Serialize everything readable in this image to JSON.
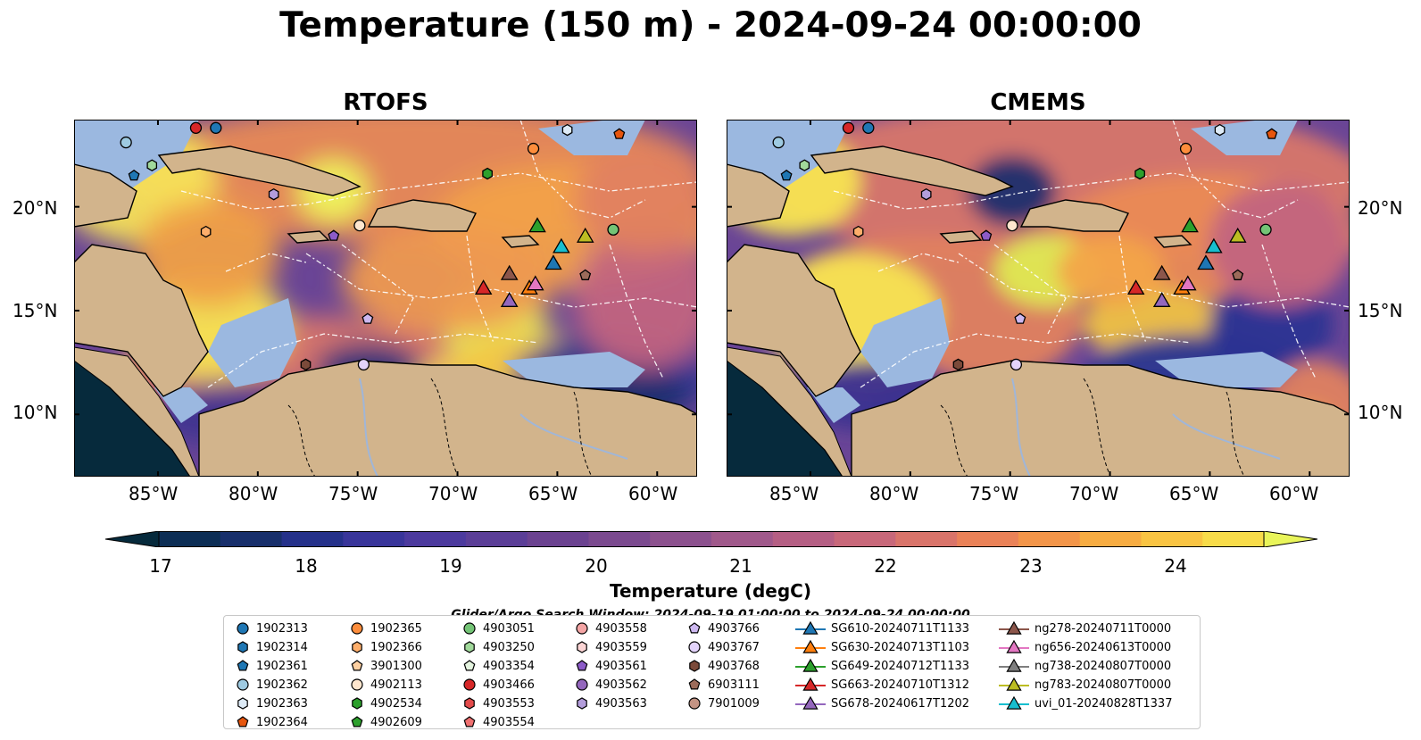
{
  "title": "Temperature (150 m) - 2024-09-24 00:00:00",
  "panels": [
    {
      "title": "RTOFS"
    },
    {
      "title": "CMEMS"
    }
  ],
  "axes": {
    "lat_labels": [
      "20°N",
      "15°N",
      "10°N"
    ],
    "lon_labels": [
      "85°W",
      "80°W",
      "75°W",
      "70°W",
      "65°W",
      "60°W"
    ],
    "lon_range": [
      -89.2,
      -58.0
    ],
    "lat_range": [
      7.0,
      24.2
    ]
  },
  "colorbar": {
    "label": "Temperature (degC)",
    "ticks": [
      "17",
      "18",
      "19",
      "20",
      "21",
      "22",
      "23",
      "24"
    ],
    "range": [
      16.5,
      24.5
    ],
    "extend": "both",
    "colors": [
      "#062a3c",
      "#0d2e55",
      "#182f6b",
      "#25318a",
      "#39359a",
      "#4c3a9e",
      "#5b3e97",
      "#6b4290",
      "#7b4a8f",
      "#8c518e",
      "#a0598b",
      "#b55f84",
      "#c8687a",
      "#d9746a",
      "#ea8258",
      "#f39549",
      "#f7ac42",
      "#f9c443",
      "#f8dc4a",
      "#e9f55a"
    ]
  },
  "search_window": "Glider/Argo Search Window: 2024-09-19 01:00:00 to 2024-09-24 00:00:00",
  "legend": {
    "columns": [
      [
        {
          "label": "1902313",
          "shape": "circle",
          "color": "#1f77b4"
        },
        {
          "label": "1902314",
          "shape": "hexagon",
          "color": "#1f77b4"
        },
        {
          "label": "1902361",
          "shape": "pentagon",
          "color": "#1f77b4"
        },
        {
          "label": "1902362",
          "shape": "circle",
          "color": "#9ecae1"
        },
        {
          "label": "1902363",
          "shape": "hexagon",
          "color": "#deebf7"
        },
        {
          "label": "1902364",
          "shape": "pentagon",
          "color": "#e6550d"
        }
      ],
      [
        {
          "label": "1902365",
          "shape": "circle",
          "color": "#fd8d3c"
        },
        {
          "label": "1902366",
          "shape": "hexagon",
          "color": "#fdae6b"
        },
        {
          "label": "3901300",
          "shape": "pentagon",
          "color": "#fdd0a2"
        },
        {
          "label": "4902113",
          "shape": "circle",
          "color": "#fee6ce"
        },
        {
          "label": "4902534",
          "shape": "hexagon",
          "color": "#2ca02c"
        },
        {
          "label": "4902609",
          "shape": "pentagon",
          "color": "#2ca02c"
        }
      ],
      [
        {
          "label": "4903051",
          "shape": "circle",
          "color": "#74c476"
        },
        {
          "label": "4903250",
          "shape": "hexagon",
          "color": "#a1d99b"
        },
        {
          "label": "4903354",
          "shape": "pentagon",
          "color": "#e5f5e0"
        },
        {
          "label": "4903466",
          "shape": "circle",
          "color": "#d62728"
        },
        {
          "label": "4903553",
          "shape": "hexagon",
          "color": "#e34a4a"
        },
        {
          "label": "4903554",
          "shape": "pentagon",
          "color": "#f07070"
        }
      ],
      [
        {
          "label": "4903558",
          "shape": "circle",
          "color": "#f4a5a5"
        },
        {
          "label": "4903559",
          "shape": "hexagon",
          "color": "#fcd5d5"
        },
        {
          "label": "4903561",
          "shape": "pentagon",
          "color": "#8c5bc8"
        },
        {
          "label": "4903562",
          "shape": "circle",
          "color": "#9467bd"
        },
        {
          "label": "4903563",
          "shape": "hexagon",
          "color": "#b39ddb"
        }
      ],
      [
        {
          "label": "4903766",
          "shape": "pentagon",
          "color": "#cdb8f0"
        },
        {
          "label": "4903767",
          "shape": "circle",
          "color": "#e3d3fb"
        },
        {
          "label": "4903768",
          "shape": "hexagon",
          "color": "#7b4a3a"
        },
        {
          "label": "6903111",
          "shape": "pentagon",
          "color": "#9c6b5a"
        },
        {
          "label": "7901009",
          "shape": "circle",
          "color": "#c49484"
        }
      ],
      [
        {
          "label": "SG610-20240711T1133",
          "shape": "triangle",
          "color": "#1f77b4"
        },
        {
          "label": "SG630-20240713T1103",
          "shape": "triangle",
          "color": "#ff7f0e"
        },
        {
          "label": "SG649-20240712T1133",
          "shape": "triangle",
          "color": "#2ca02c"
        },
        {
          "label": "SG663-20240710T1312",
          "shape": "triangle",
          "color": "#d62728"
        },
        {
          "label": "SG678-20240617T1202",
          "shape": "triangle",
          "color": "#9467bd"
        }
      ],
      [
        {
          "label": "ng278-20240711T0000",
          "shape": "triangle",
          "color": "#8c564b"
        },
        {
          "label": "ng656-20240613T0000",
          "shape": "triangle",
          "color": "#e377c2"
        },
        {
          "label": "ng738-20240807T0000",
          "shape": "triangle",
          "color": "#7f7f7f"
        },
        {
          "label": "ng783-20240807T0000",
          "shape": "triangle",
          "color": "#bcbd22"
        },
        {
          "label": "uvi_01-20240828T1337",
          "shape": "triangle",
          "color": "#17becf"
        }
      ]
    ]
  },
  "observations": [
    {
      "id": "1902313",
      "lon": -82.1,
      "lat": 23.8
    },
    {
      "id": "1902361",
      "lon": -86.2,
      "lat": 21.5
    },
    {
      "id": "1902362",
      "lon": -86.6,
      "lat": 23.1
    },
    {
      "id": "1902363",
      "lon": -64.5,
      "lat": 23.7
    },
    {
      "id": "1902364",
      "lon": -61.9,
      "lat": 23.5
    },
    {
      "id": "1902365",
      "lon": -66.2,
      "lat": 22.8
    },
    {
      "id": "4902113",
      "lon": -74.9,
      "lat": 19.1
    },
    {
      "id": "4902534",
      "lon": -68.5,
      "lat": 21.6
    },
    {
      "id": "4903051",
      "lon": -62.2,
      "lat": 18.9
    },
    {
      "id": "4903250",
      "lon": -85.3,
      "lat": 22.0
    },
    {
      "id": "4903466",
      "lon": -83.1,
      "lat": 23.8
    },
    {
      "id": "4903561",
      "lon": -76.2,
      "lat": 18.6
    },
    {
      "id": "4903563",
      "lon": -79.2,
      "lat": 20.6
    },
    {
      "id": "4903766",
      "lon": -74.5,
      "lat": 14.6
    },
    {
      "id": "4903767",
      "lon": -74.7,
      "lat": 12.4
    },
    {
      "id": "4903768",
      "lon": -77.6,
      "lat": 12.4
    },
    {
      "id": "6903111",
      "lon": -63.6,
      "lat": 16.7
    },
    {
      "id": "1902366",
      "lon": -82.6,
      "lat": 18.8
    },
    {
      "id": "SG610",
      "lon": -65.2,
      "lat": 17.3
    },
    {
      "id": "SG630",
      "lon": -66.4,
      "lat": 16.1
    },
    {
      "id": "SG649",
      "lon": -66.0,
      "lat": 19.1
    },
    {
      "id": "SG663",
      "lon": -68.7,
      "lat": 16.1
    },
    {
      "id": "SG678",
      "lon": -67.4,
      "lat": 15.5
    },
    {
      "id": "ng278",
      "lon": -67.4,
      "lat": 16.8
    },
    {
      "id": "ng656",
      "lon": -66.1,
      "lat": 16.3
    },
    {
      "id": "ng783",
      "lon": -63.6,
      "lat": 18.6
    },
    {
      "id": "uvi_01",
      "lon": -64.8,
      "lat": 18.1
    }
  ]
}
